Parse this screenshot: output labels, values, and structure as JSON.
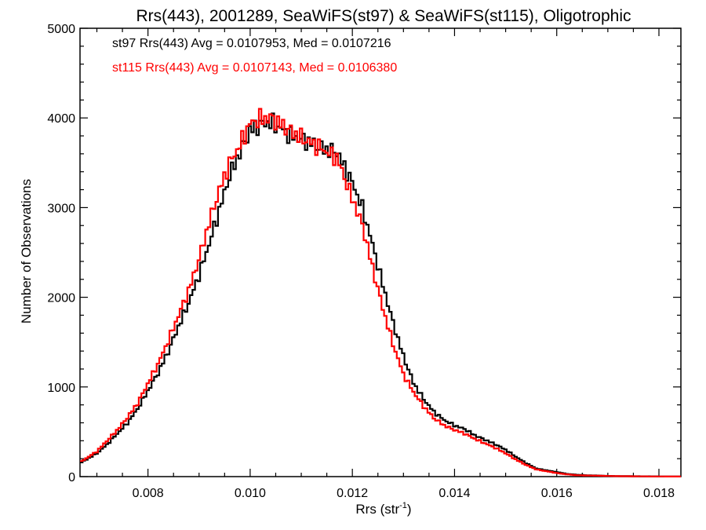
{
  "chart_data": {
    "type": "line",
    "title": "Rrs(443), 2001289, SeaWiFS(st97) & SeaWiFS(st115), Oligotrophic",
    "xlabel_main": "Rrs (str",
    "xlabel_sup": "-1",
    "xlabel_close": ")",
    "ylabel": "Number of Observations",
    "xlim": [
      0.00667,
      0.01843
    ],
    "ylim": [
      0,
      5000
    ],
    "xticks": [
      0.008,
      0.01,
      0.012,
      0.014,
      0.016,
      0.018
    ],
    "xtick_labels": [
      "0.008",
      "0.010",
      "0.012",
      "0.014",
      "0.016",
      "0.018"
    ],
    "yticks": [
      0,
      1000,
      2000,
      3000,
      4000,
      5000
    ],
    "ytick_labels": [
      "0",
      "1000",
      "2000",
      "3000",
      "4000",
      "5000"
    ],
    "grid": false,
    "legend_placement": "top-left",
    "series": [
      {
        "name": "st97",
        "color": "#000000",
        "annotation": "st97 Rrs(443) Avg = 0.0107953, Med = 0.0107216",
        "x": [
          0.00667,
          0.007,
          0.0072,
          0.0074,
          0.0076,
          0.0078,
          0.008,
          0.0082,
          0.0084,
          0.0086,
          0.0088,
          0.009,
          0.0092,
          0.0094,
          0.0096,
          0.0098,
          0.01,
          0.0102,
          0.0104,
          0.0106,
          0.0108,
          0.011,
          0.0112,
          0.0114,
          0.0116,
          0.0117,
          0.0118,
          0.012,
          0.0122,
          0.0124,
          0.0126,
          0.0128,
          0.013,
          0.0132,
          0.0134,
          0.0136,
          0.0138,
          0.014,
          0.0142,
          0.0144,
          0.0146,
          0.0148,
          0.015,
          0.0152,
          0.0154,
          0.0156,
          0.0158,
          0.016,
          0.0162,
          0.0164,
          0.0166,
          0.0168,
          0.017,
          0.0172,
          0.0174,
          0.0176,
          0.0178,
          0.018,
          0.0182,
          0.01843
        ],
        "y": [
          150,
          260,
          360,
          480,
          600,
          760,
          960,
          1160,
          1400,
          1680,
          1940,
          2250,
          2600,
          2980,
          3360,
          3620,
          3860,
          3930,
          3950,
          3880,
          3800,
          3760,
          3720,
          3660,
          3630,
          3620,
          3500,
          3280,
          2990,
          2580,
          2130,
          1710,
          1340,
          1040,
          860,
          720,
          630,
          570,
          530,
          460,
          410,
          360,
          300,
          220,
          150,
          90,
          70,
          50,
          30,
          20,
          15,
          12,
          8,
          6,
          5,
          4,
          3,
          2,
          2,
          1
        ]
      },
      {
        "name": "st115",
        "color": "#ff0000",
        "annotation": "st115 Rrs(443) Avg = 0.0107143, Med = 0.0106380",
        "x": [
          0.00667,
          0.007,
          0.0072,
          0.0074,
          0.0076,
          0.0078,
          0.008,
          0.0082,
          0.0084,
          0.0086,
          0.0088,
          0.009,
          0.0092,
          0.0094,
          0.0096,
          0.0098,
          0.01,
          0.0102,
          0.0104,
          0.0106,
          0.0108,
          0.011,
          0.0112,
          0.0114,
          0.0116,
          0.0117,
          0.0118,
          0.012,
          0.0122,
          0.0124,
          0.0126,
          0.0128,
          0.013,
          0.0132,
          0.0134,
          0.0136,
          0.0138,
          0.014,
          0.0142,
          0.0144,
          0.0146,
          0.0148,
          0.015,
          0.0152,
          0.0154,
          0.0156,
          0.0158,
          0.016,
          0.0162,
          0.0164,
          0.0166,
          0.0168,
          0.017,
          0.0172,
          0.0174,
          0.0176,
          0.0178,
          0.018,
          0.0182,
          0.01843
        ],
        "y": [
          160,
          280,
          400,
          520,
          660,
          820,
          1040,
          1260,
          1520,
          1800,
          2080,
          2430,
          2840,
          3200,
          3500,
          3700,
          3940,
          3990,
          4000,
          3930,
          3850,
          3780,
          3720,
          3660,
          3580,
          3560,
          3400,
          3100,
          2800,
          2320,
          1870,
          1470,
          1140,
          940,
          780,
          650,
          570,
          520,
          480,
          420,
          370,
          320,
          260,
          190,
          130,
          80,
          60,
          40,
          25,
          15,
          12,
          10,
          7,
          5,
          4,
          3,
          2,
          2,
          1,
          1
        ]
      }
    ]
  }
}
